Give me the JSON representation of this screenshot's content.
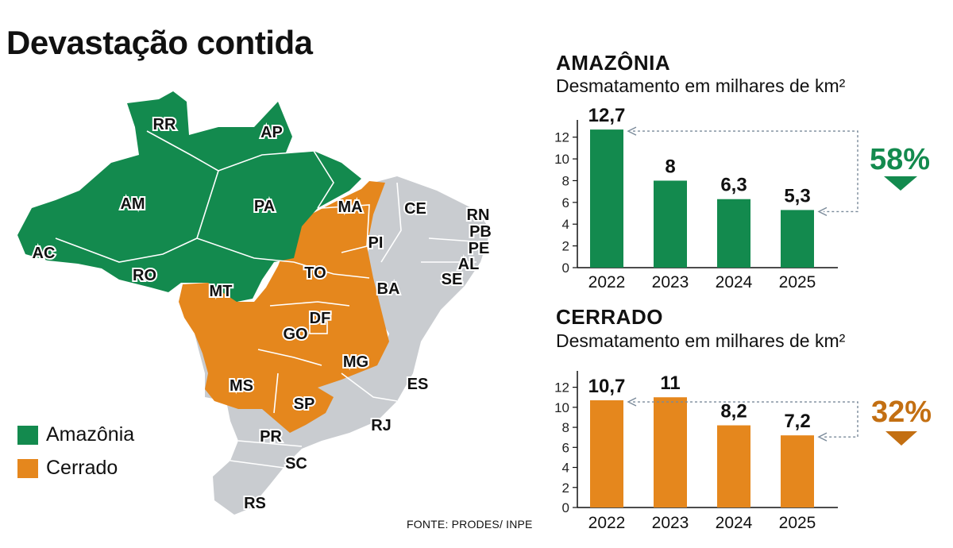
{
  "title": "Devastação contida",
  "map": {
    "states": [
      "RR",
      "AP",
      "AM",
      "PA",
      "MA",
      "CE",
      "RN",
      "PB",
      "PE",
      "AL",
      "SE",
      "PI",
      "AC",
      "RO",
      "MT",
      "TO",
      "BA",
      "DF",
      "GO",
      "MG",
      "ES",
      "MS",
      "SP",
      "RJ",
      "PR",
      "SC",
      "RS"
    ],
    "colors": {
      "amazonia": "#138a4e",
      "cerrado": "#e5871d",
      "other": "#c9ccd0"
    }
  },
  "legend": [
    {
      "label": "Amazônia",
      "color": "#138a4e"
    },
    {
      "label": "Cerrado",
      "color": "#e5871d"
    }
  ],
  "source": "FONTE: PRODES/ INPE",
  "chart_data": [
    {
      "type": "bar",
      "title": "AMAZÔNIA",
      "subtitle": "Desmatamento em milhares de km²",
      "categories": [
        "2022",
        "2023",
        "2024",
        "2025"
      ],
      "values": [
        12.7,
        8,
        6.3,
        5.3
      ],
      "value_labels": [
        "12,7",
        "8",
        "6,3",
        "5,3"
      ],
      "yticks": [
        "0",
        "2",
        "4",
        "6",
        "8",
        "10",
        "12"
      ],
      "ylim": [
        0,
        13
      ],
      "color": "#138a4e",
      "change_label": "58%",
      "change_direction": "down",
      "grid": false
    },
    {
      "type": "bar",
      "title": "CERRADO",
      "subtitle": "Desmatamento em milhares de km²",
      "categories": [
        "2022",
        "2023",
        "2024",
        "2025"
      ],
      "values": [
        10.7,
        11,
        8.2,
        7.2
      ],
      "value_labels": [
        "10,7",
        "11",
        "8,2",
        "7,2"
      ],
      "yticks": [
        "0",
        "2",
        "4",
        "6",
        "8",
        "10",
        "12"
      ],
      "ylim": [
        0,
        13
      ],
      "color": "#e5871d",
      "change_label": "32%",
      "change_direction": "down",
      "grid": false
    }
  ]
}
